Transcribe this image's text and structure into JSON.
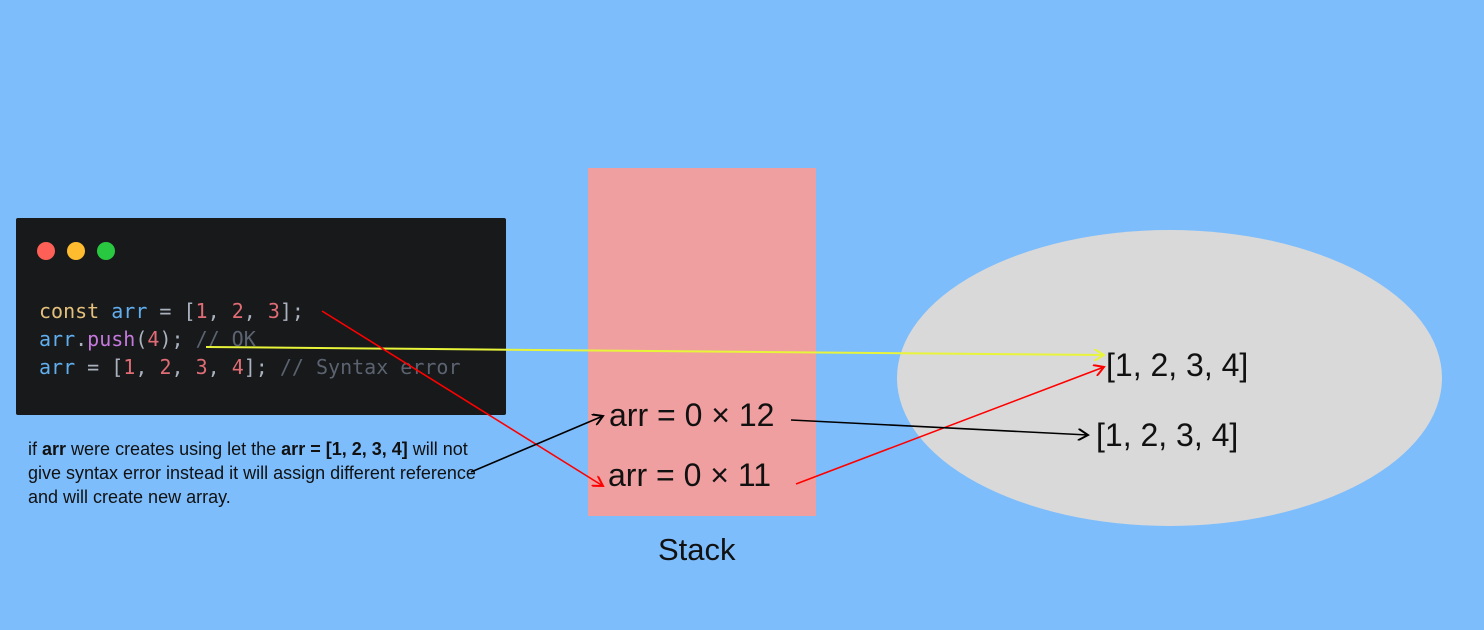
{
  "code_window": {
    "lines": [
      [
        {
          "text": "const ",
          "cls": "kw"
        },
        {
          "text": "arr",
          "cls": "var"
        },
        {
          "text": " = ",
          "cls": "pn"
        },
        {
          "text": "[",
          "cls": "pn"
        },
        {
          "text": "1",
          "cls": "num"
        },
        {
          "text": ", ",
          "cls": "pn"
        },
        {
          "text": "2",
          "cls": "num"
        },
        {
          "text": ", ",
          "cls": "pn"
        },
        {
          "text": "3",
          "cls": "num"
        },
        {
          "text": "];",
          "cls": "pn"
        }
      ],
      [
        {
          "text": "arr",
          "cls": "var"
        },
        {
          "text": ".",
          "cls": "pn"
        },
        {
          "text": "push",
          "cls": "fn"
        },
        {
          "text": "(",
          "cls": "pn"
        },
        {
          "text": "4",
          "cls": "num"
        },
        {
          "text": "); ",
          "cls": "pn"
        },
        {
          "text": "// OK",
          "cls": "cm"
        }
      ],
      [
        {
          "text": "arr",
          "cls": "var"
        },
        {
          "text": " = ",
          "cls": "pn"
        },
        {
          "text": "[",
          "cls": "pn"
        },
        {
          "text": "1",
          "cls": "num"
        },
        {
          "text": ", ",
          "cls": "pn"
        },
        {
          "text": "2",
          "cls": "num"
        },
        {
          "text": ", ",
          "cls": "pn"
        },
        {
          "text": "3",
          "cls": "num"
        },
        {
          "text": ", ",
          "cls": "pn"
        },
        {
          "text": "4",
          "cls": "num"
        },
        {
          "text": "]; ",
          "cls": "pn"
        },
        {
          "text": "// Syntax error",
          "cls": "cm"
        }
      ]
    ]
  },
  "note": {
    "part1": "if ",
    "bold1": "arr",
    "part2": " were creates using let the ",
    "bold2": "arr = [1, 2, 3, 4]",
    "part3": " will not give syntax error instead it will assign different reference and will create new array."
  },
  "stack": {
    "entry_top": "arr = 0 × 12",
    "entry_bottom": "arr = 0 × 11",
    "label": "Stack"
  },
  "heap": {
    "value_top": "[1, 2, 3, 4]",
    "value_bottom": "[1, 2, 3, 4]"
  },
  "colors": {
    "background": "#7dbdfc",
    "stack_fill": "#ef9f9f",
    "heap_fill": "#d9d9d9",
    "code_bg": "#17191b",
    "arrow_red": "#ff0000",
    "arrow_yellow": "#e8f43a",
    "arrow_black": "#000000"
  }
}
